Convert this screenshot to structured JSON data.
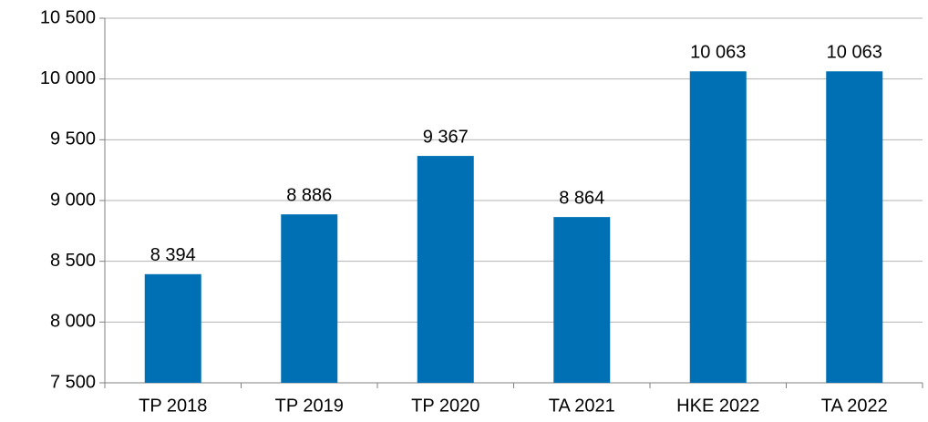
{
  "chart_data": {
    "type": "bar",
    "categories": [
      "TP 2018",
      "TP 2019",
      "TP 2020",
      "TA 2021",
      "HKE 2022",
      "TA 2022"
    ],
    "values": [
      8394,
      8886,
      9367,
      8864,
      10063,
      10063
    ],
    "value_labels": [
      "8 394",
      "8 886",
      "9 367",
      "8 864",
      "10 063",
      "10 063"
    ],
    "color": "#0070b5",
    "ylim": [
      7500,
      10500
    ],
    "yticks": [
      {
        "value": 7500,
        "label": "7 500"
      },
      {
        "value": 8000,
        "label": "8 000"
      },
      {
        "value": 8500,
        "label": "8 500"
      },
      {
        "value": 9000,
        "label": "9 000"
      },
      {
        "value": 9500,
        "label": "9 500"
      },
      {
        "value": 10000,
        "label": "10 000"
      },
      {
        "value": 10500,
        "label": "10 500"
      }
    ],
    "grid": true
  }
}
